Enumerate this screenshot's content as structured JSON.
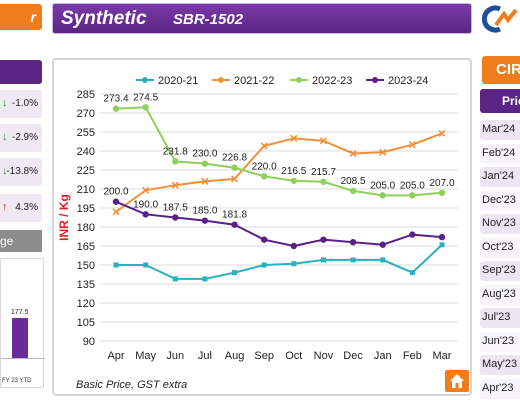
{
  "header": {
    "left_tab_label": "r",
    "title": "Synthetic",
    "subtitle": "SBR-1502"
  },
  "left_panel": {
    "items": [
      {
        "direction": "down",
        "arrow": "↓",
        "value": "-1.0%",
        "color": "#1f9d2b"
      },
      {
        "direction": "down",
        "arrow": "↓",
        "value": "-2.9%",
        "color": "#1f9d2b"
      },
      {
        "direction": "down",
        "arrow": "↓",
        "value": "-13.8%",
        "color": "#1f9d2b"
      },
      {
        "direction": "up",
        "arrow": "↑",
        "value": "4.3%",
        "color": "#e02020"
      }
    ],
    "section_label": "ge",
    "mini_bar": {
      "value_label": "177.5",
      "axis_label": "FY 23 YTD",
      "color": "#6a2c9a"
    }
  },
  "right_panel": {
    "header": "CIR",
    "subheader": "Pric",
    "months": [
      "Mar'24",
      "Feb'24",
      "Jan'24",
      "Dec'23",
      "Nov'23",
      "Oct'23",
      "Sep'23",
      "Aug'23",
      "Jul'23",
      "Jun'23",
      "May'23",
      "Apr'23"
    ]
  },
  "footnote": "Basic Price, GST extra",
  "chart_data": {
    "type": "line",
    "ylabel": "INR / Kg",
    "xlabel": "",
    "ylim": [
      90,
      285
    ],
    "yticks": [
      90,
      105,
      120,
      135,
      150,
      165,
      180,
      195,
      210,
      225,
      240,
      255,
      270,
      285
    ],
    "categories": [
      "Apr",
      "May",
      "Jun",
      "Jul",
      "Aug",
      "Sep",
      "Oct",
      "Nov",
      "Dec",
      "Jan",
      "Feb",
      "Mar"
    ],
    "legend_position": "top",
    "grid": "horizontal",
    "series": [
      {
        "name": "2020-21",
        "color": "#2ab0c0",
        "values": [
          150,
          150,
          139,
          139,
          144,
          150,
          151,
          154,
          154,
          154,
          144,
          166
        ]
      },
      {
        "name": "2021-22",
        "color": "#f0913a",
        "values": [
          192,
          209,
          213,
          216,
          218,
          244,
          250,
          248,
          238,
          239,
          245,
          254
        ]
      },
      {
        "name": "2022-23",
        "color": "#8ed05a",
        "values": [
          273.4,
          274.5,
          231.8,
          230.0,
          226.8,
          220.0,
          216.5,
          215.7,
          208.5,
          205.0,
          205.0,
          207.0
        ]
      },
      {
        "name": "2023-24",
        "color": "#5a1f8a",
        "values": [
          200.0,
          190.0,
          187.5,
          185.0,
          181.8,
          170,
          165,
          170,
          168,
          166,
          174,
          172
        ]
      }
    ],
    "data_labels": {
      "2022-23": [
        "273.4",
        "274.5",
        "231.8",
        "230.0",
        "226.8",
        "220.0",
        "216.5",
        "215.7",
        "208.5",
        "205.0",
        "205.0",
        "207.0"
      ],
      "2023-24": [
        "200.0",
        "190.0",
        "187.5",
        "185.0",
        "181.8"
      ]
    }
  }
}
